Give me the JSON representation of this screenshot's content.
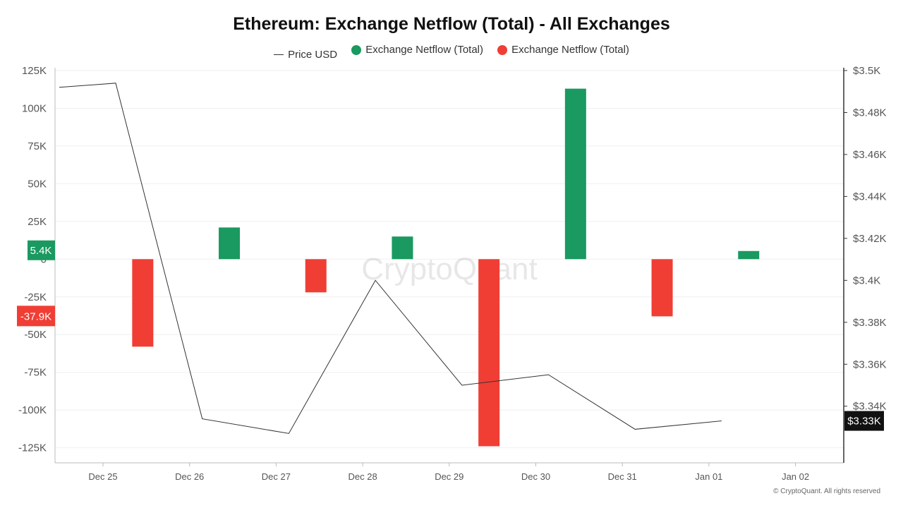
{
  "title": "Ethereum: Exchange Netflow (Total) - All Exchanges",
  "legend": [
    {
      "label": "Price USD",
      "type": "line",
      "color": "#333333"
    },
    {
      "label": "Exchange Netflow (Total)",
      "type": "dot",
      "color": "#1a9960"
    },
    {
      "label": "Exchange Netflow (Total)",
      "type": "dot",
      "color": "#f03e35"
    }
  ],
  "watermark": "CryptoQuant",
  "credit": "© CryptoQuant. All rights reserved",
  "colors": {
    "positive": "#1a9960",
    "negative": "#f03e35",
    "price": "#333333",
    "price_badge": "#111111"
  },
  "chart_data": {
    "type": "bar",
    "title": "Ethereum: Exchange Netflow (Total) - All Exchanges",
    "categories": [
      "Dec 25",
      "Dec 26",
      "Dec 27",
      "Dec 28",
      "Dec 29",
      "Dec 30",
      "Dec 31",
      "Jan 01",
      "Jan 02"
    ],
    "left_axis": {
      "ticks": [
        125000,
        100000,
        75000,
        50000,
        25000,
        0,
        -25000,
        -50000,
        -75000,
        -100000,
        -125000
      ],
      "tick_labels": [
        "125K",
        "100K",
        "75K",
        "50K",
        "25K",
        "0",
        "-25K",
        "-50K",
        "-75K",
        "-100K",
        "-125K"
      ],
      "range": [
        -135000,
        125000
      ]
    },
    "right_axis": {
      "ticks": [
        3500,
        3480,
        3460,
        3440,
        3420,
        3400,
        3380,
        3360,
        3340
      ],
      "tick_labels": [
        "$3.5K",
        "$3.48K",
        "$3.46K",
        "$3.44K",
        "$3.42K",
        "$3.4K",
        "$3.38K",
        "$3.36K",
        "$3.34K"
      ],
      "range": [
        3313,
        3500
      ]
    },
    "netflow": [
      {
        "date": "Dec 25",
        "value": -58000
      },
      {
        "date": "Dec 26",
        "value": 21000
      },
      {
        "date": "Dec 27",
        "value": -22000
      },
      {
        "date": "Dec 28",
        "value": 15000
      },
      {
        "date": "Dec 29",
        "value": -124000
      },
      {
        "date": "Dec 30",
        "value": 113000
      },
      {
        "date": "Dec 31",
        "value": -37900
      },
      {
        "date": "Jan 01",
        "value": 5400
      }
    ],
    "price": [
      {
        "date": "Dec 24",
        "value": 3492
      },
      {
        "date": "Dec 25",
        "value": 3494
      },
      {
        "date": "Dec 26",
        "value": 3334
      },
      {
        "date": "Dec 27",
        "value": 3327
      },
      {
        "date": "Dec 28",
        "value": 3400
      },
      {
        "date": "Dec 29",
        "value": 3350
      },
      {
        "date": "Dec 30",
        "value": 3355
      },
      {
        "date": "Dec 31",
        "value": 3329
      },
      {
        "date": "Jan 01",
        "value": 3333
      }
    ],
    "badges": {
      "left_green": "5.4K",
      "left_red": "-37.9K",
      "right_price": "$3.33K"
    }
  }
}
